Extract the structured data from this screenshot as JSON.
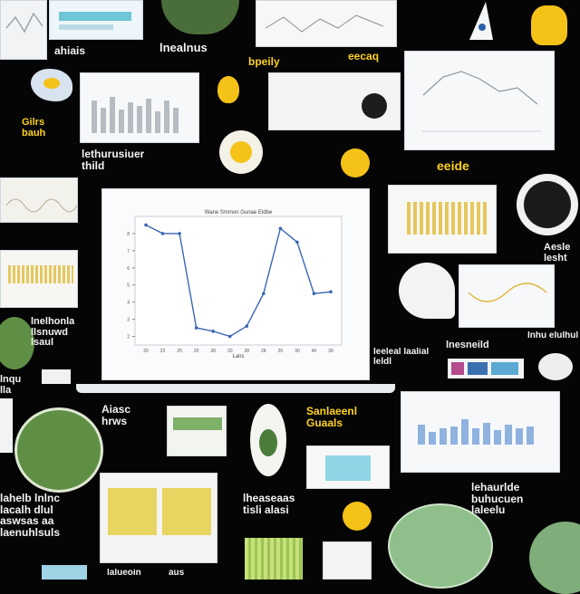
{
  "colors": {
    "background": "#050505",
    "accent_yellow": "#f5c218",
    "leaf_green": "#5f8f45",
    "chart_line": "#3a66b4",
    "bar_blue": "#8fb2df",
    "bar_yellow": "#e6c75c"
  },
  "words": {
    "w1": "ahiais",
    "w2": "lnealnus",
    "w3": "bpeily",
    "w4": "eecaq",
    "w5": "Gilrs\nbauh",
    "w6": "lethurusiuer\nthild",
    "w7": "eeide",
    "w8": "Aesle\nlesht",
    "w9": "lnelhonla\nllsnuwd\nlsaul",
    "w10": "leeleal laalial\nleldl",
    "w11": "lnesneild",
    "w12": "lnhu elulhul",
    "w13": "Aiasc\nhrws",
    "w14": "lnqu\nlla",
    "w15": "Sanlaeenl\nGuaals",
    "w16": "lheaseaas\ntisli alasi",
    "w17": "lahelb lnlnc\nlacalh dlul\naswsas aa\nlaenuhlsuls",
    "w18": "lehaurlde\nbuhucuen\nlaleelu",
    "w19": "lalueoin",
    "w20": "aus"
  },
  "chart_data": {
    "type": "line",
    "title": "Wane Smmon Gunae Eldbe",
    "xlabel": "Lans",
    "ylabel": "",
    "x": [
      "20",
      "23",
      "25",
      "20",
      "28",
      "20",
      "28",
      "28",
      "25",
      "30",
      "40",
      "30"
    ],
    "values": [
      8.5,
      8.0,
      8.0,
      2.5,
      2.3,
      2.0,
      2.6,
      4.5,
      8.3,
      7.5,
      4.5,
      4.6
    ],
    "yticks": [
      "2",
      "3",
      "4",
      "5",
      "6",
      "7",
      "8"
    ],
    "ylim": [
      1.5,
      9
    ],
    "grid": false,
    "legend": "none"
  }
}
